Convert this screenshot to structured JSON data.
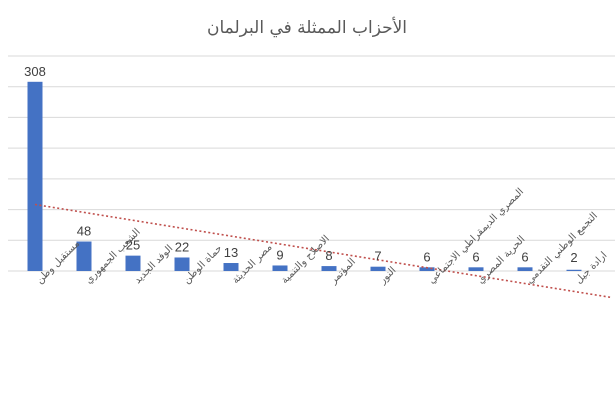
{
  "chart_data": {
    "type": "bar",
    "title": "الأحزاب الممثلة في البرلمان",
    "categories": [
      "مستقبل وطن",
      "الشعب الجمهوري",
      "الوفد الجديد",
      "حماة الوطن",
      "مصر الحديثة",
      "الاصلاح والتنمية",
      "المؤتمر",
      "النور",
      "المصري الديمقراطي الاجتماعي",
      "الحرية المصري",
      "التجمع الوطني التقدمي",
      "ارادة جيل",
      "العدل"
    ],
    "values": [
      308,
      48,
      25,
      22,
      13,
      9,
      8,
      7,
      6,
      6,
      6,
      2,
      2
    ],
    "ylim": [
      0,
      350
    ],
    "ytick_step": 50,
    "grid": true,
    "trendline": {
      "type": "linear",
      "style": "dotted",
      "color": "#c0504d"
    },
    "colors": {
      "bar": "#4472c4",
      "grid": "#d9d9d9",
      "text": "#595959"
    }
  }
}
